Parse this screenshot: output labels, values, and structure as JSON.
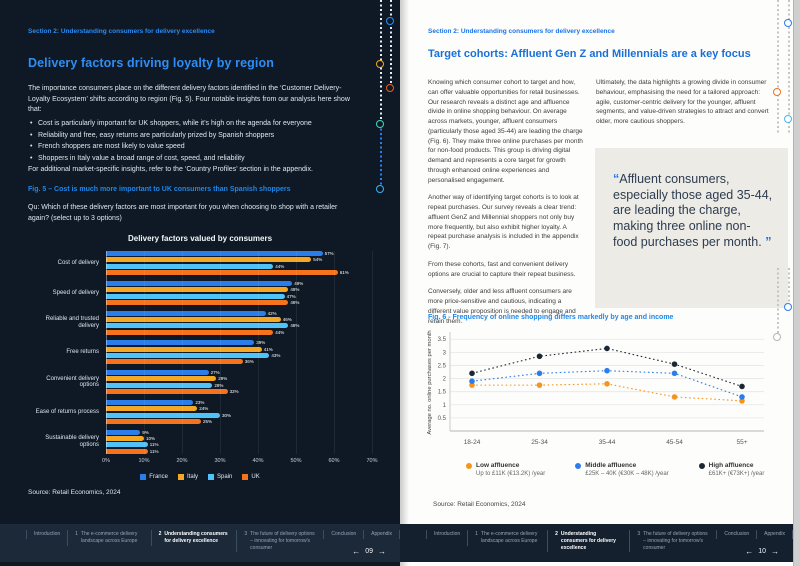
{
  "palette": {
    "accent_blue": "#1a73e8",
    "left_page_bg": "#0e1925",
    "left_heading_blue": "#2f8ef5",
    "quote_box_bg": "#edebe5",
    "footer_bg": "#1b2838"
  },
  "left_page": {
    "section_label": "Section 2: Understanding consumers for delivery excellence",
    "title": "Delivery factors driving loyalty by region",
    "intro": "The importance consumers place on the different delivery factors identified in the ‘Customer Delivery-Loyalty Ecosystem’ shifts according to region (Fig. 5). Four notable insights from our analysis here show that:",
    "bullets": [
      "Cost is particularly important for UK shoppers, while it’s high on the agenda for everyone",
      "Reliability and free, easy returns are particularly prized by Spanish shoppers",
      "French shoppers are most likely to value speed",
      "Shoppers in Italy value a broad range of cost, speed, and reliability"
    ],
    "note": "For additional market-specific insights, refer to the ‘Country Profiles’ section in the appendix.",
    "fig_caption": "Fig. 5 – Cost is much more important to UK consumers than Spanish shoppers",
    "question": "Qu: Which of these delivery factors are most important for you when choosing to shop with a retailer again? (select up to 3 options)",
    "source": "Source: Retail Economics, 2024",
    "page_no": "09"
  },
  "right_page": {
    "section_label": "Section 2: Understanding consumers for delivery excellence",
    "title": "Target cohorts: Affluent Gen Z and Millennials are a key focus",
    "col1_paras": [
      "Knowing which consumer cohort to target and how, can offer valuable opportunities for retail businesses. Our research reveals a distinct age and affluence divide in online shopping behaviour. On average across markets, younger, affluent consumers (particularly those aged 35-44) are leading the charge (Fig. 6). They make three online purchases per month for non-food products. This group is driving digital demand and represents a core target for growth through enhanced online experiences and personalised engagement.",
      "Another way of identifying target cohorts is to look at repeat purchases. Our survey reveals a clear trend: affluent GenZ and Millennial shoppers not only buy more frequently, but also exhibit higher loyalty. A repeat purchase analysis is included in the appendix (Fig. 7).",
      "From these cohorts, fast and convenient delivery options are crucial to capture their repeat business.",
      "Conversely, older and less affluent consumers are more price-sensitive and cautious, indicating a different value proposition is needed to engage and retain them."
    ],
    "col2_para": "Ultimately, the data highlights a growing divide in consumer behaviour, emphasising the need for a tailored approach: agile, customer-centric delivery for the younger, affluent segments, and value-driven strategies to attract and convert older, more cautious shoppers.",
    "quote": {
      "open_quote": "“",
      "text": "Affluent consumers, especially those aged 35-44, are leading the charge, making three online non-food purchases per month. ",
      "close_quote": "”"
    },
    "fig_caption": "Fig. 6 - Frequency of online shopping differs markedly by age and income",
    "source": "Source: Retail Economics, 2024",
    "page_no": "10"
  },
  "footer": {
    "prev": "←",
    "next": "→",
    "items": [
      {
        "num": "",
        "label": "Introduction",
        "active": false
      },
      {
        "num": "1",
        "label": "The e-commerce delivery landscape across Europe",
        "active": false
      },
      {
        "num": "2",
        "label": "Understanding consumers for delivery excellence",
        "active": true
      },
      {
        "num": "3",
        "label": "The future of delivery options – innovating for tomorrow's consumer",
        "active": false
      },
      {
        "num": "",
        "label": "Conclusion",
        "active": false
      },
      {
        "num": "",
        "label": "Appendix",
        "active": false
      }
    ]
  },
  "chart_data": [
    {
      "type": "bar",
      "orientation": "horizontal",
      "title": "Delivery factors valued by consumers",
      "categories": [
        "Cost of delivery",
        "Speed of delivery",
        "Reliable and trusted delivery",
        "Free returns",
        "Convenient delivery options",
        "Ease of returns process",
        "Sustainable delivery options"
      ],
      "series": [
        {
          "name": "France",
          "color": "#2b7de9",
          "values": [
            57,
            49,
            42,
            39,
            27,
            23,
            9
          ]
        },
        {
          "name": "Italy",
          "color": "#f5a623",
          "values": [
            54,
            48,
            46,
            41,
            29,
            24,
            10
          ]
        },
        {
          "name": "Spain",
          "color": "#4fc3f7",
          "values": [
            44,
            47,
            48,
            43,
            28,
            30,
            11
          ]
        },
        {
          "name": "UK",
          "color": "#f4731c",
          "values": [
            61,
            48,
            44,
            36,
            32,
            25,
            11
          ]
        }
      ],
      "xlim": [
        0,
        70
      ],
      "x_ticks": [
        "0%",
        "10%",
        "20%",
        "30%",
        "40%",
        "50%",
        "60%",
        "70%"
      ],
      "value_suffix": "%",
      "grid": true,
      "legend_position": "bottom"
    },
    {
      "type": "line",
      "title": "",
      "x_categories": [
        "18-24",
        "25-34",
        "35-44",
        "45-54",
        "55+"
      ],
      "ylabel": "Average no. online purchases per month",
      "y_ticks": [
        0.5,
        1,
        1.5,
        2,
        2.5,
        3,
        3.5
      ],
      "ylim": [
        0,
        3.7
      ],
      "line_style": "dashed",
      "grid": true,
      "legend_position": "bottom",
      "series": [
        {
          "name": "Low affluence",
          "sub_label": "Up to £11K (€13.2K) /year",
          "color": "#f7941d",
          "values": [
            1.75,
            1.75,
            1.8,
            1.3,
            1.15
          ]
        },
        {
          "name": "Middle affluence",
          "sub_label": "£25K – 40K (€30K – 48K) /year",
          "color": "#2b7de9",
          "values": [
            1.9,
            2.2,
            2.3,
            2.2,
            1.3
          ]
        },
        {
          "name": "High affluence",
          "sub_label": "£61K+ (€73K+) /year",
          "color": "#1c2733",
          "values": [
            2.2,
            2.85,
            3.15,
            2.55,
            1.7
          ]
        }
      ]
    }
  ]
}
